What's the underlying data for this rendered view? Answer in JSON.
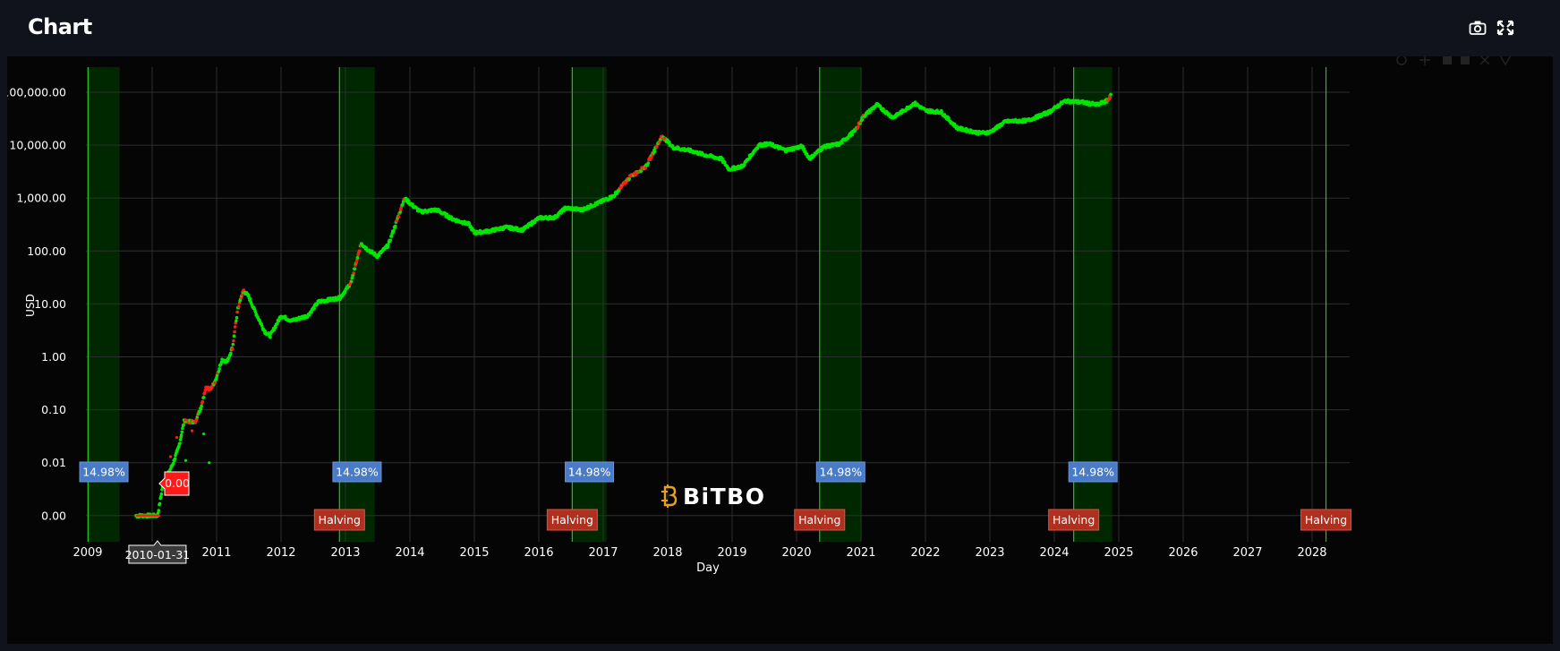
{
  "header": {
    "title": "Chart",
    "icons": [
      "camera-icon",
      "fullscreen-icon"
    ]
  },
  "chart_data": {
    "type": "scatter",
    "title": "",
    "xlabel": "Day",
    "ylabel": "USD",
    "y_scale": "log",
    "y_ticks": [
      "100,000.00",
      "10,000.00",
      "1,000.00",
      "100.00",
      "10.00",
      "1.00",
      "0.10",
      "0.01",
      "0.00"
    ],
    "x_ticks": [
      "2009",
      "2010",
      "2011",
      "2012",
      "2013",
      "2014",
      "2015",
      "2016",
      "2017",
      "2018",
      "2019",
      "2020",
      "2021",
      "2022",
      "2023",
      "2024",
      "2025",
      "2026",
      "2027",
      "2028"
    ],
    "xlim": [
      "2009-01-01",
      "2028-09-01"
    ],
    "grid": true,
    "colors": {
      "up": "#00e600",
      "down": "#ff1a1a",
      "halving_line": "#1fc41f",
      "halving_band": "#002800",
      "pct_badge": "#4a7bc8",
      "halving_badge": "#b03020"
    },
    "halvings": [
      {
        "date": "2009-01-03",
        "label": "",
        "band_end": "2009-07-01"
      },
      {
        "date": "2012-11-28",
        "label": "Halving",
        "band_end": "2013-06-15"
      },
      {
        "date": "2016-07-09",
        "label": "Halving",
        "band_end": "2017-01-20"
      },
      {
        "date": "2020-05-11",
        "label": "Halving",
        "band_end": "2021-01-05"
      },
      {
        "date": "2024-04-20",
        "label": "Halving",
        "band_end": "2024-11-25"
      },
      {
        "date": "2028-03-20",
        "label": "Halving",
        "band_end": null
      }
    ],
    "band_percent_labels": [
      "14.98%",
      "14.98%",
      "14.98%",
      "14.98%",
      "14.98%"
    ],
    "hover": {
      "date": "2010-01-31",
      "value": "0.00"
    },
    "price_series": [
      [
        "2009-10-01",
        0.001
      ],
      [
        "2009-12-01",
        0.001
      ],
      [
        "2010-02-01",
        0.001
      ],
      [
        "2010-03-01",
        0.0035
      ],
      [
        "2010-04-01",
        0.006
      ],
      [
        "2010-05-01",
        0.01
      ],
      [
        "2010-06-01",
        0.02
      ],
      [
        "2010-07-01",
        0.06
      ],
      [
        "2010-08-01",
        0.06
      ],
      [
        "2010-09-01",
        0.06
      ],
      [
        "2010-10-01",
        0.1
      ],
      [
        "2010-11-01",
        0.25
      ],
      [
        "2010-12-01",
        0.25
      ],
      [
        "2011-01-01",
        0.4
      ],
      [
        "2011-02-01",
        0.9
      ],
      [
        "2011-03-01",
        0.8
      ],
      [
        "2011-04-01",
        1.5
      ],
      [
        "2011-05-01",
        8
      ],
      [
        "2011-06-01",
        18
      ],
      [
        "2011-07-01",
        14
      ],
      [
        "2011-08-01",
        8
      ],
      [
        "2011-10-01",
        3
      ],
      [
        "2011-11-01",
        2.5
      ],
      [
        "2012-01-01",
        6
      ],
      [
        "2012-03-01",
        4.8
      ],
      [
        "2012-06-01",
        6
      ],
      [
        "2012-08-01",
        11
      ],
      [
        "2012-10-01",
        12
      ],
      [
        "2012-12-01",
        13
      ],
      [
        "2013-02-01",
        25
      ],
      [
        "2013-04-01",
        140
      ],
      [
        "2013-05-01",
        110
      ],
      [
        "2013-07-01",
        80
      ],
      [
        "2013-09-01",
        130
      ],
      [
        "2013-11-01",
        500
      ],
      [
        "2013-12-01",
        1000
      ],
      [
        "2014-01-01",
        800
      ],
      [
        "2014-03-01",
        550
      ],
      [
        "2014-06-01",
        600
      ],
      [
        "2014-09-01",
        400
      ],
      [
        "2014-12-01",
        320
      ],
      [
        "2015-01-01",
        220
      ],
      [
        "2015-04-01",
        240
      ],
      [
        "2015-07-01",
        280
      ],
      [
        "2015-10-01",
        250
      ],
      [
        "2016-01-01",
        420
      ],
      [
        "2016-04-01",
        430
      ],
      [
        "2016-06-01",
        650
      ],
      [
        "2016-09-01",
        600
      ],
      [
        "2016-12-01",
        800
      ],
      [
        "2017-03-01",
        1100
      ],
      [
        "2017-06-01",
        2500
      ],
      [
        "2017-09-01",
        4000
      ],
      [
        "2017-12-01",
        15000
      ],
      [
        "2018-02-01",
        9000
      ],
      [
        "2018-05-01",
        8000
      ],
      [
        "2018-08-01",
        6500
      ],
      [
        "2018-11-01",
        5500
      ],
      [
        "2018-12-15",
        3500
      ],
      [
        "2019-03-01",
        4000
      ],
      [
        "2019-06-01",
        10000
      ],
      [
        "2019-08-01",
        10500
      ],
      [
        "2019-11-01",
        8000
      ],
      [
        "2020-02-01",
        9500
      ],
      [
        "2020-03-15",
        5500
      ],
      [
        "2020-06-01",
        9300
      ],
      [
        "2020-09-01",
        10500
      ],
      [
        "2020-12-01",
        19000
      ],
      [
        "2021-01-15",
        35000
      ],
      [
        "2021-04-01",
        58000
      ],
      [
        "2021-07-01",
        33000
      ],
      [
        "2021-11-01",
        62000
      ],
      [
        "2022-01-01",
        45000
      ],
      [
        "2022-04-01",
        42000
      ],
      [
        "2022-07-01",
        21000
      ],
      [
        "2022-11-01",
        17000
      ],
      [
        "2023-01-01",
        17500
      ],
      [
        "2023-04-01",
        28000
      ],
      [
        "2023-08-01",
        29000
      ],
      [
        "2023-12-01",
        42000
      ],
      [
        "2024-03-01",
        68000
      ],
      [
        "2024-06-01",
        65000
      ],
      [
        "2024-09-01",
        58000
      ],
      [
        "2024-11-01",
        70000
      ],
      [
        "2024-11-20",
        92000
      ]
    ],
    "red_segments": [
      [
        "2010-07-01",
        "2011-01-15"
      ],
      [
        "2011-04-01",
        "2011-06-10"
      ],
      [
        "2013-01-15",
        "2013-04-10"
      ],
      [
        "2013-10-15",
        "2013-12-05"
      ],
      [
        "2017-04-01",
        "2017-12-20"
      ],
      [
        "2020-12-01",
        "2021-01-20"
      ],
      [
        "2024-11-01",
        "2024-11-30"
      ]
    ]
  }
}
